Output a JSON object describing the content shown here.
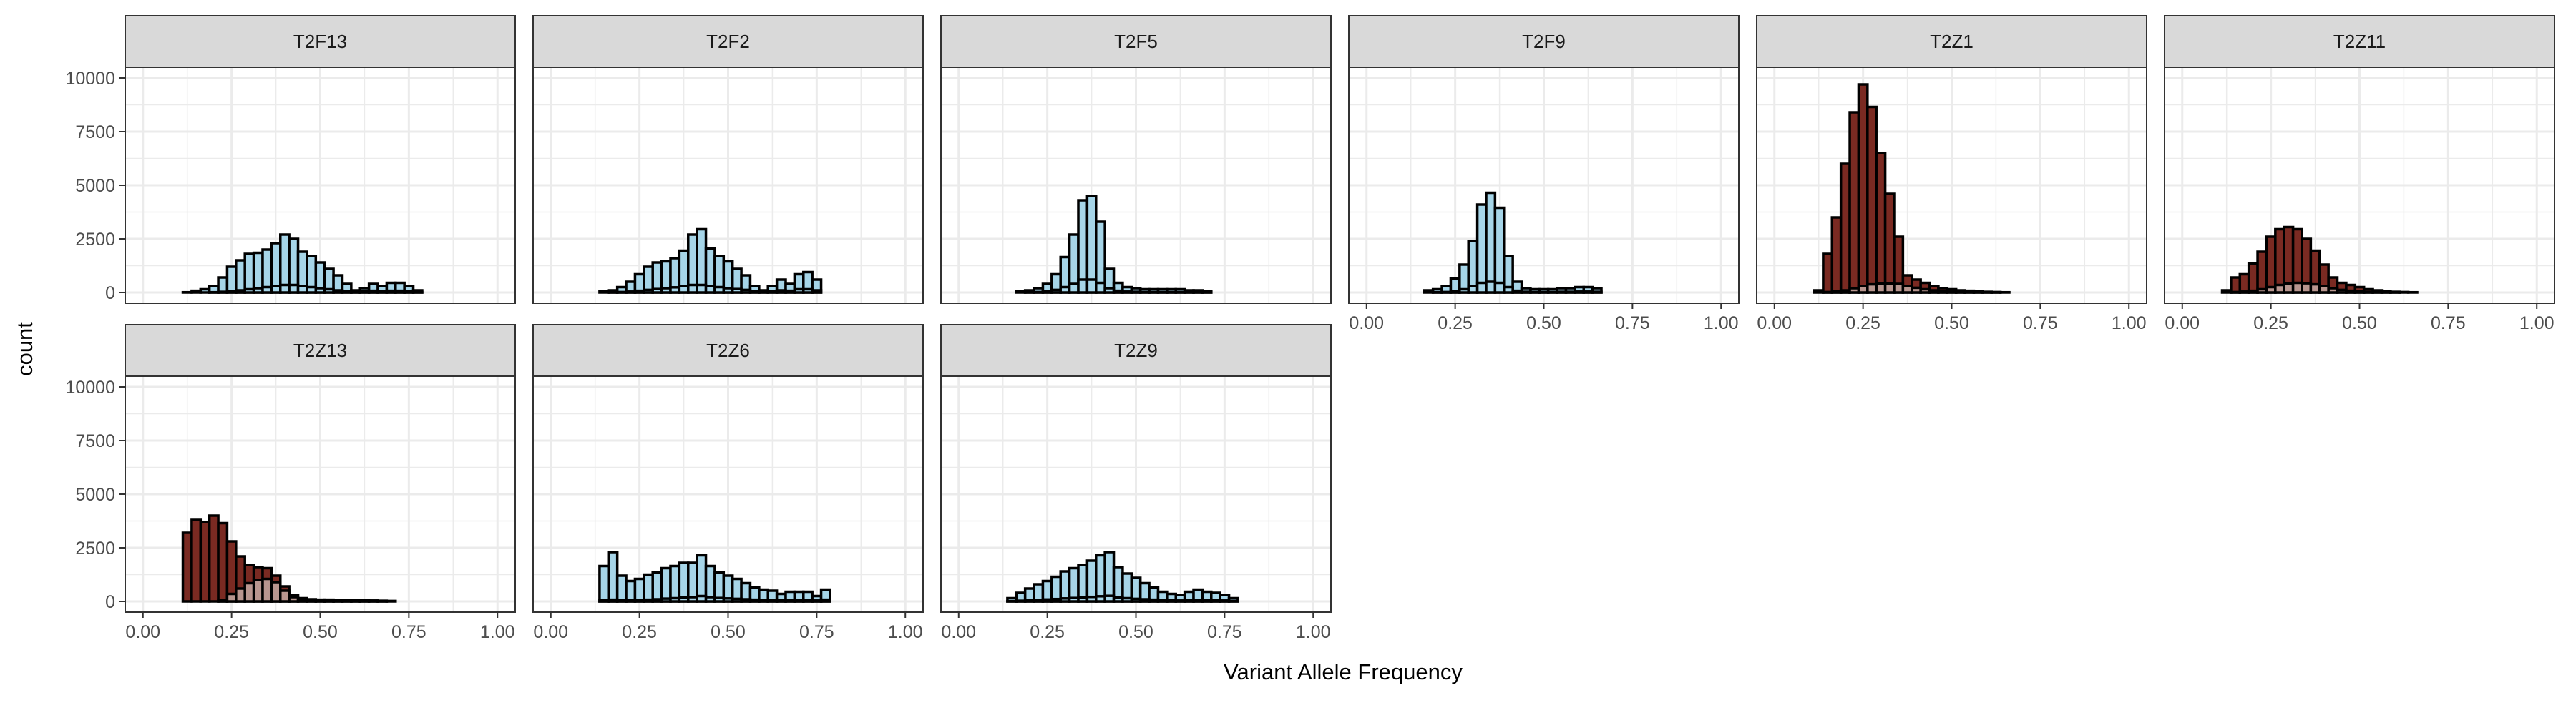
{
  "chart_data": {
    "type": "bar",
    "subtype": "faceted-histogram",
    "xlabel": "Variant Allele Frequency",
    "ylabel": "count",
    "xlim": [
      -0.05,
      1.05
    ],
    "ylim": [
      -500,
      10500
    ],
    "x_ticks": [
      0,
      0.25,
      0.5,
      0.75,
      1
    ],
    "x_tick_labels": [
      "0.00",
      "0.25",
      "0.50",
      "0.75",
      "1.00"
    ],
    "y_ticks": [
      0,
      2500,
      5000,
      7500,
      10000
    ],
    "y_tick_labels": [
      "0",
      "2500",
      "5000",
      "7500",
      "10000"
    ],
    "bin_width": 0.025,
    "grid": true,
    "colors": {
      "light": "#a6d5e8",
      "dark": "#7a2a22",
      "dark_overlay": "#b8968f",
      "bar_outline": "#000000",
      "strip": "#d9d9d9",
      "grid": "#ebebeb",
      "axis_text": "#4d4d4d"
    },
    "panels": [
      {
        "label": "T2F13",
        "fill": "light",
        "main": [
          0,
          0,
          0,
          0,
          0,
          10,
          80,
          150,
          300,
          700,
          1200,
          1500,
          1800,
          1850,
          2000,
          2300,
          2700,
          2500,
          1900,
          1700,
          1400,
          1100,
          800,
          400,
          100,
          200,
          400,
          300,
          450,
          450,
          300,
          100,
          0,
          0,
          0,
          0,
          0,
          0,
          0,
          0,
          0,
          0
        ],
        "overlay": [
          0,
          0,
          0,
          0,
          0,
          0,
          0,
          0,
          10,
          30,
          60,
          100,
          150,
          200,
          250,
          300,
          350,
          350,
          300,
          250,
          200,
          150,
          100,
          60,
          30,
          50,
          80,
          60,
          80,
          80,
          50,
          20,
          0,
          0,
          0,
          0,
          0,
          0,
          0,
          0,
          0,
          0
        ]
      },
      {
        "label": "T2F2",
        "fill": "light",
        "main": [
          0,
          0,
          0,
          0,
          0,
          0,
          50,
          100,
          250,
          500,
          850,
          1200,
          1400,
          1450,
          1600,
          1950,
          2700,
          2950,
          2050,
          1700,
          1450,
          1100,
          800,
          300,
          100,
          300,
          600,
          400,
          850,
          950,
          600,
          0,
          0,
          0,
          0,
          0,
          0,
          0,
          0,
          0,
          0,
          0
        ],
        "overlay": [
          0,
          0,
          0,
          0,
          0,
          0,
          0,
          10,
          20,
          40,
          80,
          120,
          160,
          200,
          240,
          300,
          350,
          350,
          300,
          250,
          200,
          160,
          120,
          50,
          20,
          60,
          100,
          80,
          150,
          150,
          100,
          0,
          0,
          0,
          0,
          0,
          0,
          0,
          0,
          0,
          0,
          0
        ]
      },
      {
        "label": "T2F5",
        "fill": "light",
        "main": [
          0,
          0,
          0,
          0,
          0,
          0,
          0,
          50,
          100,
          200,
          400,
          850,
          1650,
          2700,
          4300,
          4500,
          3300,
          1100,
          450,
          250,
          200,
          150,
          150,
          150,
          150,
          150,
          100,
          100,
          50,
          0,
          0,
          0,
          0,
          0,
          0,
          0,
          0,
          0,
          0,
          0,
          0,
          0
        ],
        "overlay": [
          0,
          0,
          0,
          0,
          0,
          0,
          0,
          0,
          10,
          20,
          60,
          120,
          250,
          400,
          600,
          600,
          450,
          200,
          80,
          40,
          30,
          20,
          20,
          20,
          20,
          20,
          15,
          15,
          10,
          0,
          0,
          0,
          0,
          0,
          0,
          0,
          0,
          0,
          0,
          0,
          0,
          0
        ],
        "overlay_start": 0
      },
      {
        "label": "T2F9",
        "fill": "light",
        "main": [
          0,
          0,
          0,
          0,
          0,
          0,
          0,
          100,
          150,
          300,
          650,
          1300,
          2400,
          4100,
          4650,
          3950,
          1700,
          500,
          200,
          150,
          150,
          150,
          200,
          200,
          250,
          250,
          200,
          0,
          0,
          0,
          0,
          0,
          0,
          0,
          0,
          0,
          0,
          0,
          0,
          0,
          0,
          0
        ],
        "overlay": [
          0,
          0,
          0,
          0,
          0,
          0,
          0,
          0,
          10,
          20,
          60,
          150,
          300,
          450,
          500,
          450,
          250,
          80,
          30,
          20,
          20,
          20,
          30,
          30,
          40,
          40,
          30,
          0,
          0,
          0,
          0,
          0,
          0,
          0,
          0,
          0,
          0,
          0,
          0,
          0,
          0,
          0
        ]
      },
      {
        "label": "T2Z1",
        "fill": "dark",
        "main": [
          0,
          0,
          0,
          0,
          0,
          100,
          1800,
          3500,
          6000,
          8400,
          9700,
          8650,
          6500,
          4600,
          2600,
          800,
          600,
          450,
          300,
          200,
          150,
          100,
          80,
          50,
          30,
          20,
          10,
          0,
          0,
          0,
          0,
          0,
          0,
          0,
          0,
          0,
          0,
          0,
          0,
          0,
          0,
          0
        ],
        "overlay": [
          0,
          0,
          0,
          0,
          0,
          0,
          20,
          50,
          100,
          200,
          300,
          380,
          420,
          420,
          400,
          300,
          220,
          150,
          100,
          60,
          40,
          30,
          20,
          15,
          10,
          5,
          0,
          0,
          0,
          0,
          0,
          0,
          0,
          0,
          0,
          0,
          0,
          0,
          0,
          0,
          0,
          0
        ]
      },
      {
        "label": "T2Z11",
        "fill": "dark",
        "main": [
          0,
          0,
          0,
          0,
          0,
          100,
          700,
          850,
          1350,
          1900,
          2600,
          2950,
          3050,
          2950,
          2500,
          1950,
          1300,
          700,
          450,
          350,
          250,
          150,
          100,
          50,
          30,
          20,
          10,
          0,
          0,
          0,
          0,
          0,
          0,
          0,
          0,
          0,
          0,
          0,
          0,
          0,
          0,
          0
        ],
        "overlay": [
          0,
          0,
          0,
          0,
          0,
          0,
          20,
          40,
          80,
          150,
          250,
          350,
          420,
          450,
          430,
          380,
          300,
          200,
          120,
          80,
          50,
          30,
          20,
          10,
          5,
          0,
          0,
          0,
          0,
          0,
          0,
          0,
          0,
          0,
          0,
          0,
          0,
          0,
          0,
          0,
          0,
          0
        ]
      },
      {
        "label": "T2Z13",
        "fill": "dark",
        "main": [
          0,
          0,
          0,
          0,
          0,
          3200,
          3800,
          3700,
          4000,
          3650,
          2800,
          2100,
          1700,
          1600,
          1550,
          1200,
          700,
          300,
          150,
          100,
          80,
          80,
          60,
          60,
          60,
          50,
          40,
          30,
          20,
          0,
          0,
          0,
          0,
          0,
          0,
          0,
          0,
          0,
          0,
          0,
          0,
          0
        ],
        "overlay": [
          0,
          0,
          0,
          0,
          0,
          0,
          0,
          0,
          0,
          50,
          350,
          600,
          850,
          1000,
          1050,
          900,
          500,
          200,
          80,
          40,
          30,
          30,
          20,
          20,
          20,
          15,
          10,
          10,
          0,
          0,
          0,
          0,
          0,
          0,
          0,
          0,
          0,
          0,
          0,
          0,
          0,
          0
        ]
      },
      {
        "label": "T2Z6",
        "fill": "light",
        "main": [
          0,
          0,
          0,
          0,
          0,
          0,
          1650,
          2300,
          1200,
          950,
          1050,
          1250,
          1350,
          1550,
          1650,
          1800,
          1800,
          2150,
          1650,
          1350,
          1200,
          1050,
          850,
          650,
          550,
          500,
          350,
          450,
          450,
          450,
          250,
          550,
          0,
          0,
          0,
          0,
          0,
          0,
          0,
          0,
          0,
          0
        ],
        "overlay": [
          0,
          0,
          0,
          0,
          0,
          0,
          60,
          80,
          50,
          50,
          60,
          80,
          100,
          130,
          150,
          180,
          200,
          250,
          200,
          160,
          140,
          120,
          100,
          80,
          70,
          60,
          50,
          60,
          60,
          60,
          40,
          80,
          0,
          0,
          0,
          0,
          0,
          0,
          0,
          0,
          0,
          0
        ]
      },
      {
        "label": "T2Z9",
        "fill": "light",
        "main": [
          0,
          0,
          0,
          0,
          0,
          0,
          150,
          400,
          600,
          800,
          950,
          1150,
          1400,
          1550,
          1700,
          1900,
          2150,
          2300,
          1600,
          1300,
          1100,
          850,
          650,
          450,
          350,
          300,
          450,
          550,
          450,
          400,
          300,
          150,
          0,
          0,
          0,
          0,
          0,
          0,
          0,
          0,
          0,
          0
        ],
        "overlay": [
          0,
          0,
          0,
          0,
          0,
          0,
          10,
          30,
          50,
          70,
          90,
          110,
          140,
          160,
          180,
          210,
          240,
          260,
          190,
          150,
          120,
          100,
          80,
          60,
          50,
          40,
          60,
          70,
          60,
          50,
          40,
          20,
          0,
          0,
          0,
          0,
          0,
          0,
          0,
          0,
          0,
          0
        ]
      }
    ]
  }
}
